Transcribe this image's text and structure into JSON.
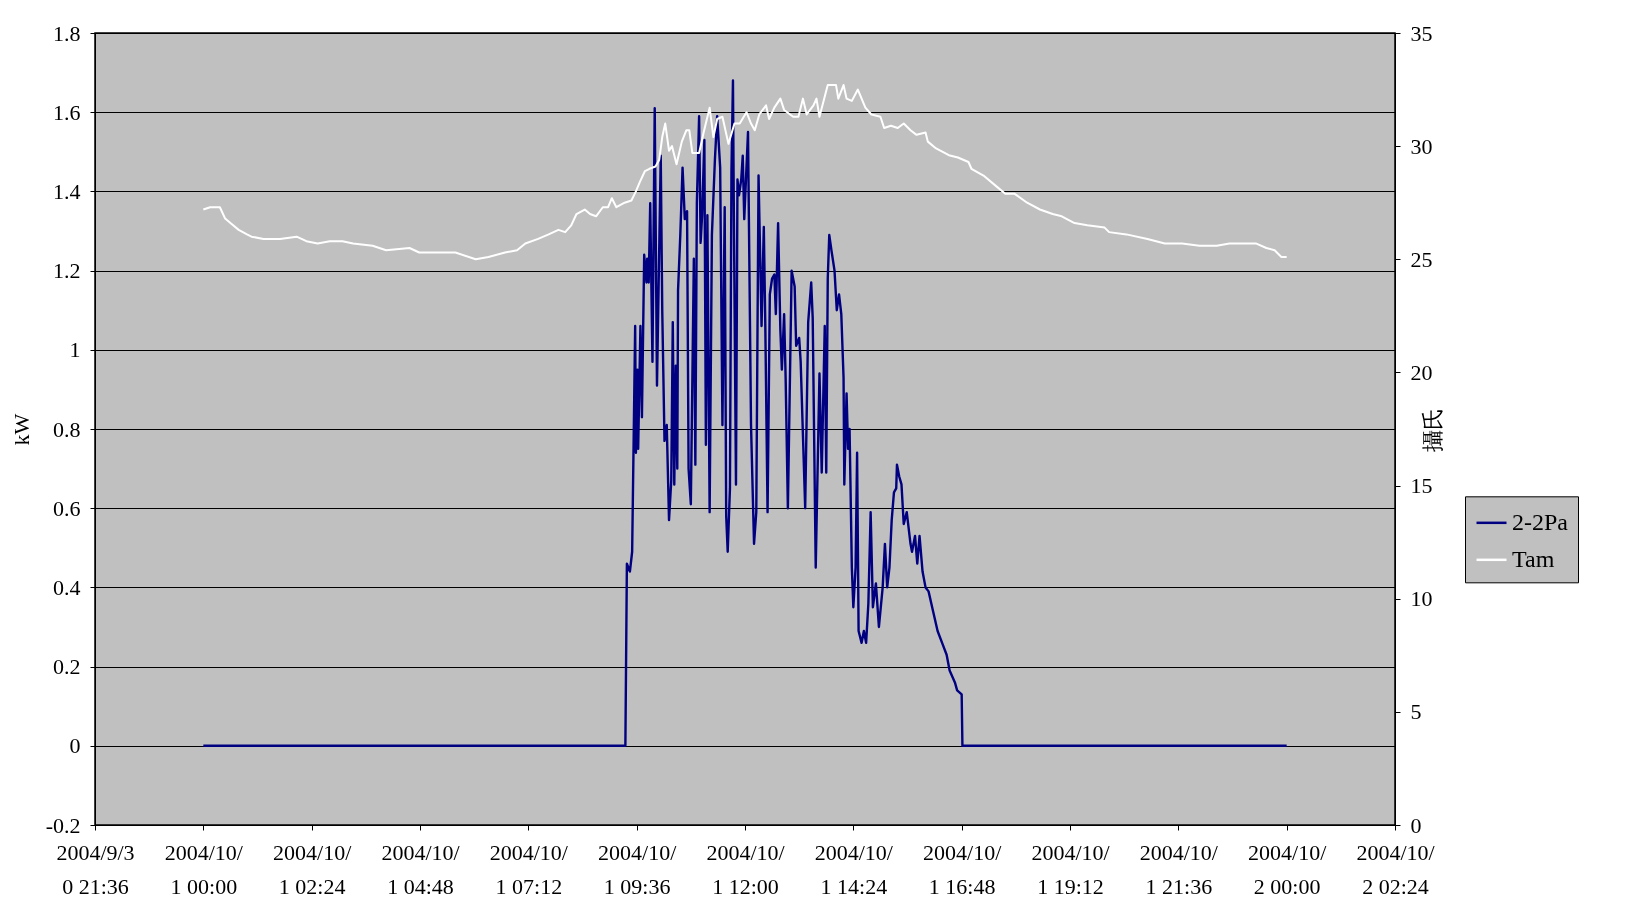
{
  "chart_data": {
    "type": "line",
    "ylabel": "kW",
    "y2label": "攝氏",
    "xlim": [
      "2004-09-30T21:36",
      "2004-10-02T02:24"
    ],
    "xticks": [
      {
        "value": "2004-09-30T21:36",
        "label": "2004/9/30 21:36"
      },
      {
        "value": "2004-10-01T00:00",
        "label": "2004/10/1 00:00"
      },
      {
        "value": "2004-10-01T02:24",
        "label": "2004/10/1 02:24"
      },
      {
        "value": "2004-10-01T04:48",
        "label": "2004/10/1 04:48"
      },
      {
        "value": "2004-10-01T07:12",
        "label": "2004/10/1 07:12"
      },
      {
        "value": "2004-10-01T09:36",
        "label": "2004/10/1 09:36"
      },
      {
        "value": "2004-10-01T12:00",
        "label": "2004/10/1 12:00"
      },
      {
        "value": "2004-10-01T14:24",
        "label": "2004/10/1 14:24"
      },
      {
        "value": "2004-10-01T16:48",
        "label": "2004/10/1 16:48"
      },
      {
        "value": "2004-10-01T19:12",
        "label": "2004/10/1 19:12"
      },
      {
        "value": "2004-10-01T21:36",
        "label": "2004/10/1 21:36"
      },
      {
        "value": "2004-10-02T00:00",
        "label": "2004/10/2 00:00"
      },
      {
        "value": "2004-10-02T02:24",
        "label": "2004/10/2 02:24"
      }
    ],
    "ylim": [
      -0.2,
      1.8
    ],
    "yticks": [
      -0.2,
      0,
      0.2,
      0.4,
      0.6,
      0.8,
      1,
      1.2,
      1.4,
      1.6,
      1.8
    ],
    "y2lim": [
      0,
      35
    ],
    "y2ticks": [
      0,
      5,
      10,
      15,
      20,
      25,
      30,
      35
    ],
    "grid": "y",
    "legend": "right",
    "series": [
      {
        "name": "2-2Pa",
        "color": "#000080",
        "axis": "y",
        "x": [
          "2004-10-01T00:00",
          "2004-10-01T09:21",
          "2004-10-01T09:23",
          "2004-10-01T09:27",
          "2004-10-01T09:30",
          "2004-10-01T09:34",
          "2004-10-01T09:35",
          "2004-10-01T09:37",
          "2004-10-01T09:38",
          "2004-10-01T09:41",
          "2004-10-01T09:43",
          "2004-10-01T09:46",
          "2004-10-01T09:49",
          "2004-10-01T09:50",
          "2004-10-01T09:52",
          "2004-10-01T09:54",
          "2004-10-01T09:57",
          "2004-10-01T10:00",
          "2004-10-01T10:03",
          "2004-10-01T10:08",
          "2004-10-01T10:10",
          "2004-10-01T10:13",
          "2004-10-01T10:16",
          "2004-10-01T10:19",
          "2004-10-01T10:22",
          "2004-10-01T10:24",
          "2004-10-01T10:26",
          "2004-10-01T10:28",
          "2004-10-01T10:30",
          "2004-10-01T10:31",
          "2004-10-01T10:34",
          "2004-10-01T10:37",
          "2004-10-01T10:40",
          "2004-10-01T10:43",
          "2004-10-01T10:45",
          "2004-10-01T10:48",
          "2004-10-01T10:52",
          "2004-10-01T10:54",
          "2004-10-01T10:56",
          "2004-10-01T10:59",
          "2004-10-01T11:01",
          "2004-10-01T11:03",
          "2004-10-01T11:06",
          "2004-10-01T11:08",
          "2004-10-01T11:10",
          "2004-10-01T11:13",
          "2004-10-01T11:16",
          "2004-10-01T11:20",
          "2004-10-01T11:23",
          "2004-10-01T11:27",
          "2004-10-01T11:30",
          "2004-10-01T11:33",
          "2004-10-01T11:35",
          "2004-10-01T11:37",
          "2004-10-01T11:40",
          "2004-10-01T11:42",
          "2004-10-01T11:44",
          "2004-10-01T11:45",
          "2004-10-01T11:48",
          "2004-10-01T11:50",
          "2004-10-01T11:52",
          "2004-10-01T11:55",
          "2004-10-01T11:57",
          "2004-10-01T11:59",
          "2004-10-01T12:04",
          "2004-10-01T12:08",
          "2004-10-01T12:12",
          "2004-10-01T12:15",
          "2004-10-01T12:18",
          "2004-10-01T12:22",
          "2004-10-01T12:25",
          "2004-10-01T12:27",
          "2004-10-01T12:30",
          "2004-10-01T12:33",
          "2004-10-01T12:36",
          "2004-10-01T12:39",
          "2004-10-01T12:41",
          "2004-10-01T12:44",
          "2004-10-01T12:47",
          "2004-10-01T12:49",
          "2004-10-01T12:52",
          "2004-10-01T12:54",
          "2004-10-01T12:57",
          "2004-10-01T13:02",
          "2004-10-01T13:06",
          "2004-10-01T13:08",
          "2004-10-01T13:12",
          "2004-10-01T13:14",
          "2004-10-01T13:20",
          "2004-10-01T13:24",
          "2004-10-01T13:28",
          "2004-10-01T13:30",
          "2004-10-01T13:34",
          "2004-10-01T13:39",
          "2004-10-01T13:42",
          "2004-10-01T13:46",
          "2004-10-01T13:48",
          "2004-10-01T13:50",
          "2004-10-01T13:52",
          "2004-10-01T13:55",
          "2004-10-01T13:59",
          "2004-10-01T14:02",
          "2004-10-01T14:05",
          "2004-10-01T14:08",
          "2004-10-01T14:11",
          "2004-10-01T14:12",
          "2004-10-01T14:15",
          "2004-10-01T14:17",
          "2004-10-01T14:19",
          "2004-10-01T14:22",
          "2004-10-01T14:24",
          "2004-10-01T14:27",
          "2004-10-01T14:29",
          "2004-10-01T14:31",
          "2004-10-01T14:35",
          "2004-10-01T14:38",
          "2004-10-01T14:41",
          "2004-10-01T14:44",
          "2004-10-01T14:47",
          "2004-10-01T14:50",
          "2004-10-01T14:54",
          "2004-10-01T14:58",
          "2004-10-01T15:03",
          "2004-10-01T15:06",
          "2004-10-01T15:09",
          "2004-10-01T15:12",
          "2004-10-01T15:15",
          "2004-10-01T15:18",
          "2004-10-01T15:21",
          "2004-10-01T15:22",
          "2004-10-01T15:25",
          "2004-10-01T15:28",
          "2004-10-01T15:31",
          "2004-10-01T15:35",
          "2004-10-01T15:40",
          "2004-10-01T15:42",
          "2004-10-01T15:46",
          "2004-10-01T15:49",
          "2004-10-01T15:52",
          "2004-10-01T15:56",
          "2004-10-01T16:00",
          "2004-10-01T16:04",
          "2004-10-01T16:10",
          "2004-10-01T16:16",
          "2004-10-01T16:22",
          "2004-10-01T16:28",
          "2004-10-01T16:32",
          "2004-10-01T16:39",
          "2004-10-01T16:42",
          "2004-10-01T16:48",
          "2004-10-01T16:49",
          "2004-10-02T00:00"
        ],
        "values": [
          0,
          0,
          0.46,
          0.44,
          0.49,
          1.06,
          0.74,
          0.95,
          0.75,
          1.06,
          0.83,
          1.24,
          1.17,
          1.23,
          1.17,
          1.37,
          0.97,
          1.61,
          0.91,
          1.49,
          1.1,
          0.77,
          0.81,
          0.57,
          0.67,
          1.07,
          0.66,
          0.96,
          0.7,
          1.15,
          1.29,
          1.46,
          1.33,
          1.35,
          0.7,
          0.61,
          1.23,
          0.71,
          1.37,
          1.59,
          1.27,
          1.34,
          1.53,
          0.76,
          1.34,
          0.59,
          1.29,
          1.48,
          1.59,
          1.46,
          0.81,
          1.36,
          0.58,
          0.49,
          0.65,
          1.45,
          1.68,
          1.39,
          0.66,
          1.43,
          1.39,
          1.43,
          1.49,
          1.33,
          1.55,
          0.81,
          0.51,
          0.59,
          1.44,
          1.06,
          1.31,
          1.06,
          0.59,
          1.14,
          1.18,
          1.19,
          1.09,
          1.32,
          1.05,
          0.95,
          1.09,
          0.93,
          0.6,
          1.2,
          1.16,
          1.01,
          1.03,
          0.97,
          0.6,
          1.07,
          1.17,
          1.08,
          0.45,
          0.94,
          0.69,
          1.06,
          0.69,
          1.18,
          1.29,
          1.25,
          1.2,
          1.1,
          1.14,
          1.09,
          0.93,
          0.66,
          0.89,
          0.75,
          0.8,
          0.45,
          0.35,
          0.45,
          0.74,
          0.29,
          0.26,
          0.29,
          0.26,
          0.36,
          0.59,
          0.35,
          0.41,
          0.3,
          0.4,
          0.51,
          0.4,
          0.45,
          0.57,
          0.64,
          0.65,
          0.71,
          0.68,
          0.66,
          0.56,
          0.59,
          0.51,
          0.49,
          0.53,
          0.46,
          0.53,
          0.44,
          0.4,
          0.39,
          0.34,
          0.29,
          0.26,
          0.23,
          0.19,
          0.16,
          0.14,
          0.13,
          0,
          0
        ]
      },
      {
        "name": "Tam",
        "color": "#ffffff",
        "axis": "y2",
        "x": [
          "2004-10-01T00:00",
          "2004-10-01T00:09",
          "2004-10-01T00:22",
          "2004-10-01T00:29",
          "2004-10-01T00:36",
          "2004-10-01T00:47",
          "2004-10-01T00:58",
          "2004-10-01T01:04",
          "2004-10-01T01:20",
          "2004-10-01T01:42",
          "2004-10-01T02:04",
          "2004-10-01T02:17",
          "2004-10-01T02:32",
          "2004-10-01T02:48",
          "2004-10-01T03:05",
          "2004-10-01T03:19",
          "2004-10-01T03:45",
          "2004-10-01T04:03",
          "2004-10-01T04:34",
          "2004-10-01T04:47",
          "2004-10-01T05:13",
          "2004-10-01T05:35",
          "2004-10-01T06:02",
          "2004-10-01T06:19",
          "2004-10-01T06:41",
          "2004-10-01T06:57",
          "2004-10-01T07:08",
          "2004-10-01T07:25",
          "2004-10-01T07:39",
          "2004-10-01T07:52",
          "2004-10-01T08:01",
          "2004-10-01T08:09",
          "2004-10-01T08:16",
          "2004-10-01T08:27",
          "2004-10-01T08:34",
          "2004-10-01T08:42",
          "2004-10-01T08:51",
          "2004-10-01T08:58",
          "2004-10-01T09:03",
          "2004-10-01T09:09",
          "2004-10-01T09:20",
          "2004-10-01T09:29",
          "2004-10-01T09:35",
          "2004-10-01T09:40",
          "2004-10-01T09:47",
          "2004-10-01T09:53",
          "2004-10-01T10:01",
          "2004-10-01T10:06",
          "2004-10-01T10:10",
          "2004-10-01T10:14",
          "2004-10-01T10:19",
          "2004-10-01T10:23",
          "2004-10-01T10:29",
          "2004-10-01T10:36",
          "2004-10-01T10:42",
          "2004-10-01T10:46",
          "2004-10-01T10:50",
          "2004-10-01T10:59",
          "2004-10-01T11:05",
          "2004-10-01T11:13",
          "2004-10-01T11:18",
          "2004-10-01T11:23",
          "2004-10-01T11:30",
          "2004-10-01T11:38",
          "2004-10-01T11:46",
          "2004-10-01T11:53",
          "2004-10-01T12:02",
          "2004-10-01T12:08",
          "2004-10-01T12:13",
          "2004-10-01T12:19",
          "2004-10-01T12:28",
          "2004-10-01T12:32",
          "2004-10-01T12:39",
          "2004-10-01T12:47",
          "2004-10-01T12:52",
          "2004-10-01T13:04",
          "2004-10-01T13:11",
          "2004-10-01T13:17",
          "2004-10-01T13:22",
          "2004-10-01T13:31",
          "2004-10-01T13:35",
          "2004-10-01T13:39",
          "2004-10-01T13:50",
          "2004-10-01T14:01",
          "2004-10-01T14:04",
          "2004-10-01T14:11",
          "2004-10-01T14:15",
          "2004-10-01T14:22",
          "2004-10-01T14:30",
          "2004-10-01T14:40",
          "2004-10-01T14:48",
          "2004-10-01T15:00",
          "2004-10-01T15:05",
          "2004-10-01T15:14",
          "2004-10-01T15:23",
          "2004-10-01T15:31",
          "2004-10-01T15:40",
          "2004-10-01T15:48",
          "2004-10-01T16:00",
          "2004-10-01T16:03",
          "2004-10-01T16:14",
          "2004-10-01T16:31",
          "2004-10-01T16:43",
          "2004-10-01T16:57",
          "2004-10-01T17:01",
          "2004-10-01T17:17",
          "2004-10-01T17:35",
          "2004-10-01T17:46",
          "2004-10-01T17:58",
          "2004-10-01T18:15",
          "2004-10-01T18:32",
          "2004-10-01T18:49",
          "2004-10-01T19:01",
          "2004-10-01T19:18",
          "2004-10-01T19:35",
          "2004-10-01T19:58",
          "2004-10-01T20:04",
          "2004-10-01T20:27",
          "2004-10-01T20:55",
          "2004-10-01T21:18",
          "2004-10-01T21:41",
          "2004-10-01T22:04",
          "2004-10-01T22:27",
          "2004-10-01T22:44",
          "2004-10-01T23:01",
          "2004-10-01T23:19",
          "2004-10-01T23:33",
          "2004-10-01T23:44",
          "2004-10-01T23:53",
          "2004-10-02T00:00"
        ],
        "values": [
          27.2,
          27.3,
          27.3,
          26.8,
          26.6,
          26.3,
          26.1,
          26.0,
          25.9,
          25.9,
          26.0,
          25.8,
          25.7,
          25.8,
          25.8,
          25.7,
          25.6,
          25.4,
          25.5,
          25.3,
          25.3,
          25.3,
          25.0,
          25.1,
          25.3,
          25.4,
          25.7,
          25.9,
          26.1,
          26.3,
          26.2,
          26.5,
          27.0,
          27.2,
          27.0,
          26.9,
          27.3,
          27.3,
          27.7,
          27.3,
          27.5,
          27.6,
          28.0,
          28.4,
          28.9,
          29.0,
          29.1,
          29.4,
          30.4,
          31.0,
          29.8,
          30.0,
          29.2,
          30.2,
          30.7,
          30.7,
          29.7,
          29.7,
          30.6,
          31.7,
          30.4,
          31.2,
          31.3,
          30.1,
          31.0,
          31.0,
          31.5,
          31.0,
          30.7,
          31.4,
          31.8,
          31.2,
          31.7,
          32.1,
          31.6,
          31.3,
          31.3,
          32.1,
          31.4,
          31.8,
          32.1,
          31.3,
          32.7,
          32.7,
          32.1,
          32.7,
          32.1,
          32.0,
          32.5,
          31.7,
          31.4,
          31.3,
          30.8,
          30.9,
          30.8,
          31.0,
          30.7,
          30.5,
          30.6,
          30.2,
          29.9,
          29.6,
          29.5,
          29.3,
          29.0,
          28.7,
          28.2,
          27.9,
          27.9,
          27.5,
          27.2,
          27.0,
          26.9,
          26.6,
          26.5,
          26.4,
          26.2,
          26.1,
          25.9,
          25.7,
          25.7,
          25.6,
          25.6,
          25.7,
          25.7,
          25.7,
          25.5,
          25.4,
          25.1,
          25.1
        ]
      }
    ]
  }
}
